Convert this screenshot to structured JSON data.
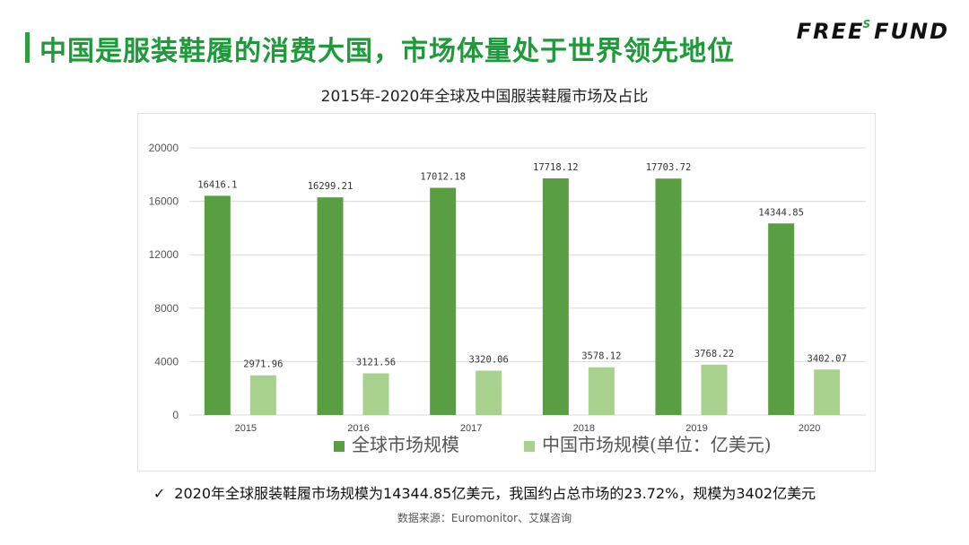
{
  "header": {
    "title": "中国是服装鞋履的消费大国，市场体量处于世界领先地位",
    "logo_main": "FREE",
    "logo_sup": "S",
    "logo_tail": "FUND"
  },
  "chart_data": {
    "type": "bar",
    "title": "2015年-2020年全球及中国服装鞋履市场及占比",
    "categories": [
      "2015",
      "2016",
      "2017",
      "2018",
      "2019",
      "2020"
    ],
    "series": [
      {
        "name": "全球市场规模",
        "color": "#5a9e43",
        "values": [
          16416.1,
          16299.21,
          17012.18,
          17718.12,
          17703.72,
          14344.85
        ],
        "labels": [
          "16416.1",
          "16299.21",
          "17012.18",
          "17718.12",
          "17703.72",
          "14344.85"
        ]
      },
      {
        "name": "中国市场规模(单位：亿美元)",
        "color": "#a9d18e",
        "values": [
          2971.96,
          3121.56,
          3320.06,
          3578.12,
          3768.22,
          3402.07
        ],
        "labels": [
          "2971.96",
          "3121.56",
          "3320.06",
          "3578.12",
          "3768.22",
          "3402.07"
        ]
      }
    ],
    "yticks": [
      "0",
      "4000",
      "8000",
      "12000",
      "16000",
      "20000"
    ],
    "ylim": [
      0,
      20000
    ],
    "grid": true,
    "legend": "bottom"
  },
  "note": {
    "check": "✓",
    "text": "2020年全球服装鞋履市场规模为14344.85亿美元，我国约占总市场的23.72%，规模为3402亿美元"
  },
  "source": "数据来源：Euromonitor、艾媒咨询"
}
